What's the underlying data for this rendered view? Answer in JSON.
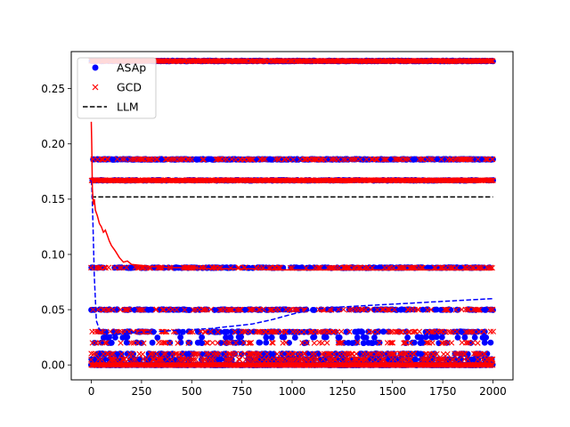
{
  "chart_data": {
    "type": "scatter",
    "title": "",
    "xlabel": "",
    "ylabel": "",
    "xlim": [
      -100,
      2100
    ],
    "ylim": [
      -0.0135,
      0.2835
    ],
    "x_ticks": [
      0,
      250,
      500,
      750,
      1000,
      1250,
      1500,
      1750,
      2000
    ],
    "x_tick_labels": [
      "0",
      "250",
      "500",
      "750",
      "1000",
      "1250",
      "1500",
      "1750",
      "2000"
    ],
    "y_ticks": [
      0.0,
      0.05,
      0.1,
      0.15,
      0.2,
      0.25
    ],
    "y_tick_labels": [
      "0.00",
      "0.05",
      "0.10",
      "0.15",
      "0.20",
      "0.25"
    ],
    "grid": false,
    "legend_position": "top-left",
    "legend": [
      {
        "label": "ASAp",
        "marker": "circle",
        "color": "#0000ff"
      },
      {
        "label": "GCD",
        "marker": "x",
        "color": "#ff0000"
      },
      {
        "label": "LLM",
        "marker": "dashed-line",
        "color": "#000000"
      }
    ],
    "series": [
      {
        "name": "ASAp",
        "kind": "scatter",
        "marker": "circle",
        "color": "#0000ff",
        "x_range": [
          0,
          2000
        ],
        "level_values": [
          0.0,
          0.005,
          0.01,
          0.02,
          0.025,
          0.03,
          0.05,
          0.088,
          0.167,
          0.186,
          0.275
        ],
        "level_density": [
          1.0,
          0.35,
          0.3,
          0.12,
          0.12,
          0.25,
          0.35,
          0.45,
          0.5,
          0.75,
          0.9
        ]
      },
      {
        "name": "GCD",
        "kind": "scatter",
        "marker": "x",
        "color": "#ff0000",
        "x_range": [
          0,
          2000
        ],
        "level_values": [
          0.0,
          0.005,
          0.01,
          0.02,
          0.03,
          0.05,
          0.088,
          0.167,
          0.186,
          0.275
        ],
        "level_density": [
          1.0,
          0.35,
          0.3,
          0.15,
          0.3,
          0.3,
          0.35,
          1.0,
          0.35,
          0.95
        ]
      },
      {
        "name": "LLM",
        "kind": "line",
        "style": "dashed",
        "color": "#000000",
        "x": [
          0,
          2000
        ],
        "y": [
          0.152,
          0.152
        ]
      },
      {
        "name": "ASAp mean",
        "kind": "line",
        "style": "dashed",
        "color": "#0000ff",
        "x": [
          0,
          3,
          8,
          15,
          25,
          40,
          60,
          80,
          100,
          150,
          200,
          300,
          400,
          500,
          600,
          700,
          800,
          900,
          1000,
          1100,
          1200,
          1300,
          1400,
          1500,
          1600,
          1700,
          1800,
          1900,
          2000
        ],
        "y": [
          0.167,
          0.16,
          0.13,
          0.08,
          0.04,
          0.032,
          0.03,
          0.028,
          0.027,
          0.028,
          0.029,
          0.03,
          0.031,
          0.032,
          0.033,
          0.035,
          0.037,
          0.041,
          0.046,
          0.05,
          0.052,
          0.053,
          0.054,
          0.055,
          0.056,
          0.057,
          0.058,
          0.059,
          0.06
        ]
      },
      {
        "name": "GCD mean",
        "kind": "line",
        "style": "solid",
        "color": "#ff0000",
        "x": [
          0,
          2,
          5,
          10,
          15,
          20,
          30,
          40,
          50,
          60,
          70,
          80,
          90,
          100,
          120,
          140,
          160,
          180,
          200,
          250,
          300,
          400,
          500,
          600,
          700,
          800,
          900,
          1000,
          1200,
          1400,
          1600,
          1800,
          2000
        ],
        "y": [
          0.22,
          0.2,
          0.16,
          0.145,
          0.15,
          0.14,
          0.135,
          0.128,
          0.125,
          0.12,
          0.122,
          0.117,
          0.112,
          0.108,
          0.103,
          0.097,
          0.093,
          0.094,
          0.091,
          0.09,
          0.089,
          0.088,
          0.088,
          0.087,
          0.087,
          0.087,
          0.086,
          0.086,
          0.086,
          0.086,
          0.086,
          0.086,
          0.086
        ]
      }
    ]
  }
}
